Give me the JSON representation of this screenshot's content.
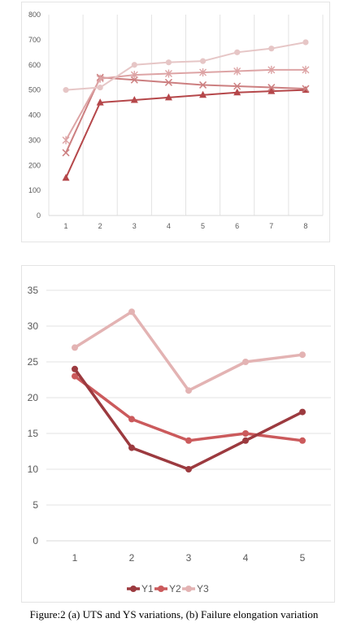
{
  "chart_data": [
    {
      "type": "line",
      "x": [
        1,
        2,
        3,
        4,
        5,
        6,
        7,
        8
      ],
      "ylim": [
        0,
        800
      ],
      "yticks": [
        0,
        100,
        200,
        300,
        400,
        500,
        600,
        700,
        800
      ],
      "grid": "vertical",
      "series": [
        {
          "marker": "triangle",
          "color": "#b5474a",
          "values": [
            150,
            450,
            460,
            470,
            480,
            490,
            495,
            500
          ]
        },
        {
          "marker": "x",
          "color": "#cc7f80",
          "values": [
            250,
            550,
            540,
            530,
            520,
            515,
            510,
            505
          ]
        },
        {
          "marker": "star",
          "color": "#dda4a5",
          "values": [
            300,
            545,
            560,
            565,
            570,
            575,
            580,
            580
          ]
        },
        {
          "marker": "circle",
          "color": "#e6c6c6",
          "values": [
            500,
            510,
            600,
            610,
            615,
            650,
            665,
            690
          ]
        }
      ]
    },
    {
      "type": "line",
      "x": [
        1,
        2,
        3,
        4,
        5
      ],
      "ylim": [
        0,
        35
      ],
      "yticks": [
        0,
        5,
        10,
        15,
        20,
        25,
        30,
        35
      ],
      "grid": "horizontal",
      "legend": "bottom",
      "series": [
        {
          "name": "Y1",
          "color": "#9c3a3f",
          "values": [
            24,
            13,
            10,
            14,
            18
          ]
        },
        {
          "name": "Y2",
          "color": "#cb5a5c",
          "values": [
            23,
            17,
            14,
            15,
            14
          ]
        },
        {
          "name": "Y3",
          "color": "#e3b3b3",
          "values": [
            27,
            32,
            21,
            25,
            26
          ]
        }
      ]
    }
  ],
  "caption": "Figure:2 (a) UTS and YS variations, (b) Failure elongation variation"
}
